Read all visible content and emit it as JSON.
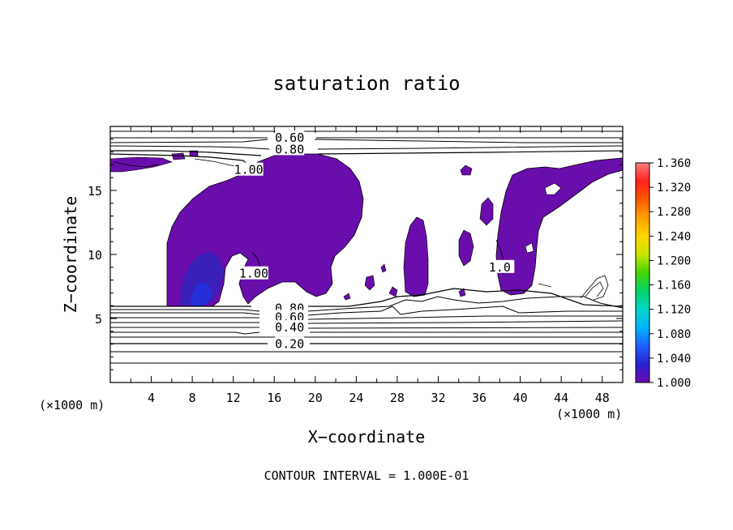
{
  "chart_data": {
    "type": "heatmap",
    "title": "saturation ratio",
    "xlabel": "X−coordinate",
    "ylabel": "Z−coordinate",
    "x_unit_left": "(×1000 m)",
    "x_unit_right": "(×1000 m)",
    "footer": "CONTOUR INTERVAL = 1.000E-01",
    "xlim": [
      0,
      50
    ],
    "ylim": [
      0,
      20
    ],
    "x_ticks": [
      4,
      8,
      12,
      16,
      20,
      24,
      28,
      32,
      36,
      40,
      44,
      48
    ],
    "y_ticks": [
      5,
      10,
      15
    ],
    "colorbar": {
      "min": 1.0,
      "max": 1.36,
      "ticks": [
        "1.360",
        "1.320",
        "1.280",
        "1.240",
        "1.200",
        "1.160",
        "1.120",
        "1.080",
        "1.040",
        "1.000"
      ],
      "colors": [
        "#6a0dad",
        "#2a1fd0",
        "#1f5fff",
        "#00b4ff",
        "#00d6c8",
        "#00d46a",
        "#46d400",
        "#c8e600",
        "#ffd600",
        "#ffa000",
        "#ff5a00",
        "#ff2020",
        "#ff8080"
      ]
    },
    "contour_labels": [
      {
        "text": "0.60",
        "x": 17.5,
        "z": 19.1
      },
      {
        "text": "0.80",
        "x": 17.5,
        "z": 18.2
      },
      {
        "text": "1.00",
        "x": 13.5,
        "z": 16.6
      },
      {
        "text": "1.00",
        "x": 14.0,
        "z": 8.5
      },
      {
        "text": "0.80",
        "x": 17.5,
        "z": 5.8
      },
      {
        "text": "0.60",
        "x": 17.5,
        "z": 5.1
      },
      {
        "text": "0.40",
        "x": 17.5,
        "z": 4.3
      },
      {
        "text": "0.20",
        "x": 17.5,
        "z": 3.0
      },
      {
        "text": "1.0",
        "x": 38.0,
        "z": 9.0
      }
    ]
  }
}
